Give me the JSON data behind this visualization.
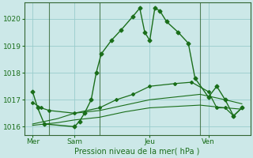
{
  "background_color": "#cce8e8",
  "grid_color": "#99cccc",
  "line_color": "#1a6e1a",
  "marker_color": "#1a6e1a",
  "title": "Pression niveau de la mer( hPa )",
  "ylabel_ticks": [
    1016,
    1017,
    1018,
    1019,
    1020
  ],
  "ylim": [
    1015.7,
    1020.6
  ],
  "x_tick_labels": [
    "Mer",
    "Sam",
    "Jeu",
    "Ven"
  ],
  "x_tick_positions": [
    0.5,
    3.0,
    7.5,
    11.0
  ],
  "xlim": [
    0,
    13.5
  ],
  "vline_positions": [
    1.5,
    4.5,
    10.5,
    13.5
  ],
  "series1_x": [
    0.5,
    0.8,
    1.2,
    3.0,
    3.3,
    3.6,
    4.0,
    4.3,
    4.6,
    5.2,
    5.8,
    6.5,
    6.9,
    7.2,
    7.5,
    7.8,
    8.1,
    8.5,
    9.2,
    9.8,
    10.2,
    11.0,
    11.5,
    12.0,
    12.5,
    13.0
  ],
  "series1_y": [
    1017.3,
    1016.7,
    1016.1,
    1016.0,
    1016.2,
    1016.5,
    1017.0,
    1018.0,
    1018.7,
    1019.2,
    1019.6,
    1020.1,
    1020.4,
    1019.5,
    1019.2,
    1020.4,
    1020.3,
    1019.9,
    1019.5,
    1019.1,
    1017.8,
    1017.1,
    1017.5,
    1017.0,
    1016.4,
    1016.7
  ],
  "series2_x": [
    0.5,
    1.0,
    1.5,
    3.0,
    4.5,
    5.5,
    6.5,
    7.5,
    9.0,
    10.0,
    11.0,
    11.5,
    12.0,
    12.5,
    13.0
  ],
  "series2_y": [
    1016.9,
    1016.7,
    1016.6,
    1016.5,
    1016.7,
    1017.0,
    1017.2,
    1017.5,
    1017.6,
    1017.65,
    1017.3,
    1016.7,
    1016.7,
    1016.4,
    1016.7
  ],
  "series3_x": [
    0.5,
    2.0,
    3.0,
    4.5,
    6.0,
    7.5,
    9.0,
    10.5,
    12.0,
    13.0
  ],
  "series3_y": [
    1016.1,
    1016.3,
    1016.5,
    1016.6,
    1016.8,
    1017.0,
    1017.1,
    1017.2,
    1017.0,
    1016.85
  ],
  "series4_x": [
    0.5,
    2.0,
    3.0,
    4.5,
    6.0,
    7.5,
    9.0,
    10.5,
    12.0,
    13.0
  ],
  "series4_y": [
    1016.05,
    1016.15,
    1016.25,
    1016.35,
    1016.55,
    1016.7,
    1016.75,
    1016.8,
    1016.7,
    1016.65
  ]
}
